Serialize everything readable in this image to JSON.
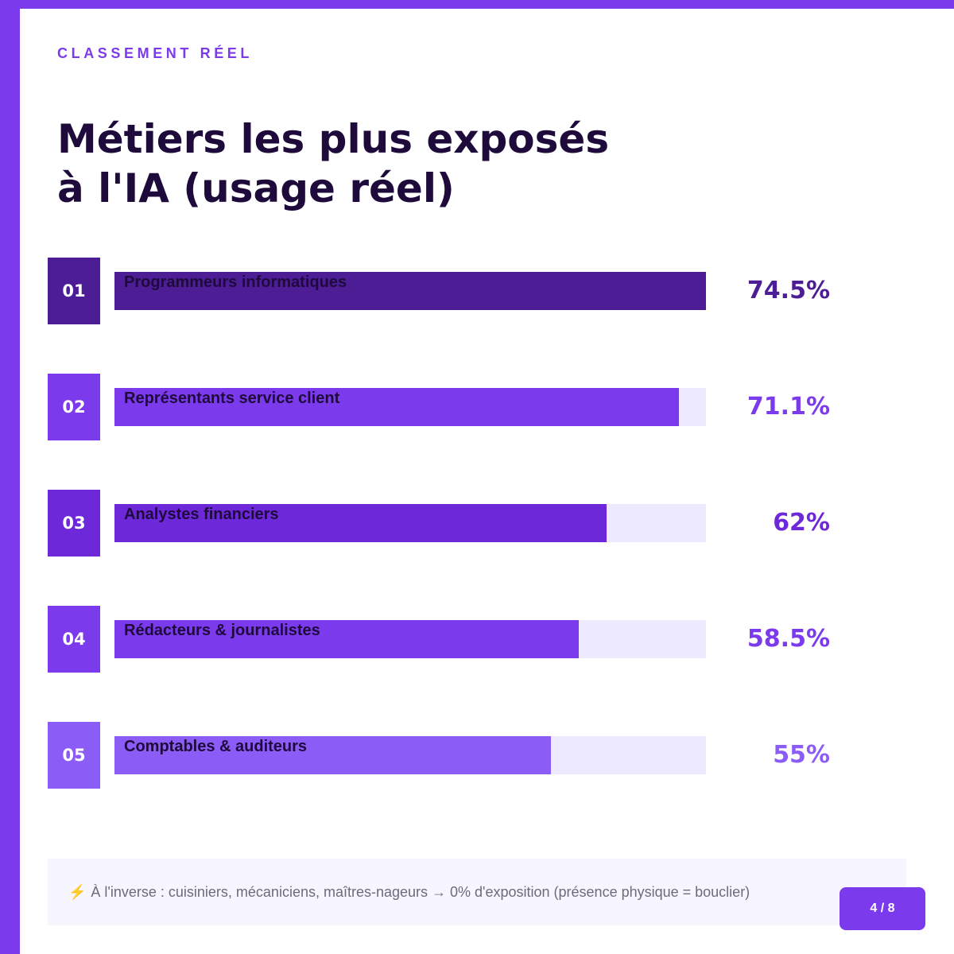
{
  "header": {
    "eyebrow": "CLASSEMENT RÉEL",
    "title_line1": "Métiers les plus exposés",
    "title_line2": "à l'IA (usage réel)"
  },
  "chart_data": {
    "type": "bar",
    "orientation": "horizontal",
    "title": "Métiers les plus exposés à l'IA (usage réel)",
    "xlim": [
      0,
      74.5
    ],
    "unit": "%",
    "categories": [
      "Programmeurs informatiques",
      "Représentants service client",
      "Analystes financiers",
      "Rédacteurs & journalistes",
      "Comptables & auditeurs"
    ],
    "values": [
      74.5,
      71.1,
      62,
      58.5,
      55
    ],
    "ranks": [
      "01",
      "02",
      "03",
      "04",
      "05"
    ],
    "value_labels": [
      "74.5%",
      "71.1%",
      "62%",
      "58.5%",
      "55%"
    ],
    "colors": [
      "#4c1d95",
      "#7c3aed",
      "#6d28d9",
      "#7c3aed",
      "#8b5cf6"
    ]
  },
  "colors": {
    "accent": "#7c3aed",
    "track": "#ede9fe",
    "title": "#1e0b3c"
  },
  "footer": {
    "note_icon": "⚡",
    "note": "À l'inverse : cuisiniers, mécaniciens, maîtres-nageurs → 0% d'exposition (présence physique = bouclier)",
    "page": "4 / 8"
  }
}
